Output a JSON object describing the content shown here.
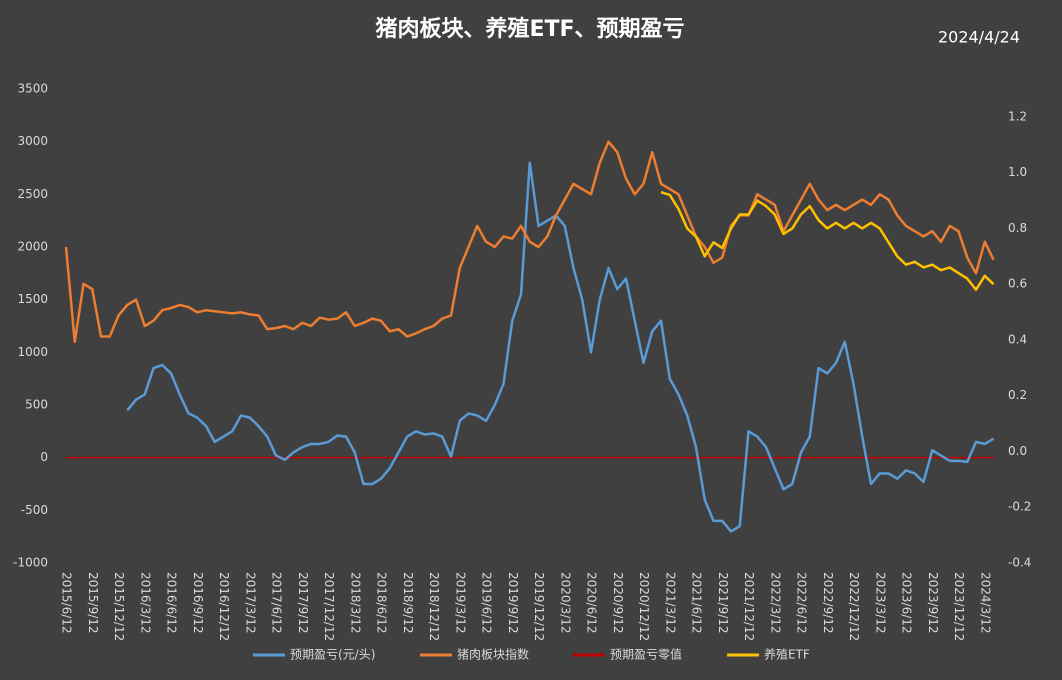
{
  "chart_data": {
    "type": "line",
    "title": "猪肉板块、养殖ETF、预期盈亏",
    "date": "2024/4/24",
    "categories": [
      "2015/6/12",
      null,
      null,
      "2015/9/12",
      null,
      null,
      "2015/12/12",
      null,
      null,
      "2016/3/12",
      null,
      null,
      "2016/6/12",
      null,
      null,
      "2016/9/12",
      null,
      null,
      "2016/12/12",
      null,
      null,
      "2017/3/12",
      null,
      null,
      "2017/6/12",
      null,
      null,
      "2017/9/12",
      null,
      null,
      "2017/12/12",
      null,
      null,
      "2018/3/12",
      null,
      null,
      "2018/6/12",
      null,
      null,
      "2018/9/12",
      null,
      null,
      "2018/12/12",
      null,
      null,
      "2019/3/12",
      null,
      null,
      "2019/6/12",
      null,
      null,
      "2019/9/12",
      null,
      null,
      "2019/12/12",
      null,
      null,
      "2020/3/12",
      null,
      null,
      "2020/6/12",
      null,
      null,
      "2020/9/12",
      null,
      null,
      "2020/12/12",
      null,
      null,
      "2021/3/12",
      null,
      null,
      "2021/6/12",
      null,
      null,
      "2021/9/12",
      null,
      null,
      "2021/12/12",
      null,
      null,
      "2022/3/12",
      null,
      null,
      "2022/6/12",
      null,
      null,
      "2022/9/12",
      null,
      null,
      "2022/12/12",
      null,
      null,
      "2023/3/12",
      null,
      null,
      "2023/6/12",
      null,
      null,
      "2023/9/12",
      null,
      null,
      "2023/12/12",
      null,
      null,
      "2024/3/12",
      null
    ],
    "ylim": [
      -1000,
      3500
    ],
    "yticks": [
      -1000,
      -500,
      0,
      500,
      1000,
      1500,
      2000,
      2500,
      3000,
      3500
    ],
    "y2lim": [
      -0.4,
      1.3
    ],
    "y2ticks": [
      -0.4,
      -0.2,
      {
        "value": 0,
        "label": "0.0"
      },
      0.2,
      0.4,
      0.6,
      0.8,
      {
        "value": 1,
        "label": "1.0"
      },
      1.2
    ],
    "series": [
      {
        "name": "预期盈亏(元/头)",
        "color": "#5b9bd5",
        "values": [
          null,
          null,
          null,
          null,
          null,
          null,
          null,
          450,
          550,
          600,
          850,
          880,
          800,
          600,
          420,
          380,
          300,
          150,
          200,
          250,
          400,
          380,
          300,
          200,
          20,
          -20,
          50,
          100,
          130,
          130,
          150,
          210,
          200,
          50,
          -250,
          -250,
          -200,
          -100,
          50,
          200,
          250,
          220,
          230,
          200,
          10,
          350,
          420,
          400,
          350,
          500,
          700,
          1300,
          1550,
          2800,
          2200,
          2250,
          2300,
          2200,
          1800,
          1500,
          1000,
          1500,
          1800,
          1600,
          1700,
          1300,
          900,
          1200,
          1300,
          750,
          600,
          400,
          100,
          -400,
          -600,
          -600,
          -700,
          -650,
          250,
          200,
          100,
          -100,
          -300,
          -250,
          50,
          200,
          850,
          800,
          900,
          1100,
          700,
          200,
          -250,
          -150,
          -150,
          -200,
          -120,
          -150,
          -230,
          70,
          20,
          -30,
          -30,
          -40,
          150,
          130,
          180
        ]
      },
      {
        "name": "猪肉板块指数",
        "color": "#ed7d31",
        "values": [
          2000,
          1100,
          1650,
          1600,
          1150,
          1150,
          1350,
          1450,
          1500,
          1250,
          1300,
          1400,
          1420,
          1450,
          1430,
          1380,
          1400,
          1390,
          1380,
          1370,
          1380,
          1360,
          1350,
          1220,
          1230,
          1250,
          1220,
          1280,
          1250,
          1330,
          1310,
          1320,
          1380,
          1250,
          1280,
          1320,
          1300,
          1200,
          1220,
          1150,
          1180,
          1220,
          1250,
          1320,
          1350,
          1800,
          2000,
          2200,
          2050,
          2000,
          2100,
          2080,
          2200,
          2050,
          2000,
          2100,
          2300,
          2450,
          2600,
          2550,
          2500,
          2800,
          3000,
          2900,
          2650,
          2500,
          2600,
          2900,
          2600,
          2550,
          2500,
          2300,
          2100,
          2000,
          1850,
          1900,
          2200,
          2300,
          2300,
          2500,
          2450,
          2400,
          2150,
          2300,
          2450,
          2600,
          2450,
          2350,
          2400,
          2350,
          2400,
          2450,
          2400,
          2500,
          2450,
          2300,
          2200,
          2150,
          2100,
          2150,
          2050,
          2200,
          2150,
          1900,
          1750,
          2050,
          1880
        ]
      },
      {
        "name": "预期盈亏零值",
        "color": "#c00000",
        "values": [
          0,
          0,
          0,
          0,
          0,
          0,
          0,
          0,
          0,
          0,
          0,
          0,
          0,
          0,
          0,
          0,
          0,
          0,
          0,
          0,
          0,
          0,
          0,
          0,
          0,
          0,
          0,
          0,
          0,
          0,
          0,
          0,
          0,
          0,
          0,
          0,
          0,
          0,
          0,
          0,
          0,
          0,
          0,
          0,
          0,
          0,
          0,
          0,
          0,
          0,
          0,
          0,
          0,
          0,
          0,
          0,
          0,
          0,
          0,
          0,
          0,
          0,
          0,
          0,
          0,
          0,
          0,
          0,
          0,
          0,
          0,
          0,
          0,
          0,
          0,
          0,
          0,
          0,
          0,
          0,
          0,
          0,
          0,
          0,
          0,
          0,
          0,
          0,
          0,
          0,
          0,
          0,
          0,
          0,
          0,
          0,
          0,
          0,
          0,
          0,
          0,
          0,
          0,
          0,
          0,
          0,
          0
        ]
      },
      {
        "name": "养殖ETF",
        "color": "#ffc000",
        "axis": "y2",
        "values": [
          null,
          null,
          null,
          null,
          null,
          null,
          null,
          null,
          null,
          null,
          null,
          null,
          null,
          null,
          null,
          null,
          null,
          null,
          null,
          null,
          null,
          null,
          null,
          null,
          null,
          null,
          null,
          null,
          null,
          null,
          null,
          null,
          null,
          null,
          null,
          null,
          null,
          null,
          null,
          null,
          null,
          null,
          null,
          null,
          null,
          null,
          null,
          null,
          null,
          null,
          null,
          null,
          null,
          null,
          null,
          null,
          null,
          null,
          null,
          null,
          null,
          null,
          null,
          null,
          null,
          null,
          null,
          null,
          0.93,
          0.92,
          0.87,
          0.8,
          0.77,
          0.7,
          0.75,
          0.73,
          0.8,
          0.85,
          0.85,
          0.9,
          0.88,
          0.85,
          0.78,
          0.8,
          0.85,
          0.88,
          0.83,
          0.8,
          0.82,
          0.8,
          0.82,
          0.8,
          0.82,
          0.8,
          0.75,
          0.7,
          0.67,
          0.68,
          0.66,
          0.67,
          0.65,
          0.66,
          0.64,
          0.62,
          0.58,
          0.63,
          0.6
        ]
      }
    ]
  }
}
